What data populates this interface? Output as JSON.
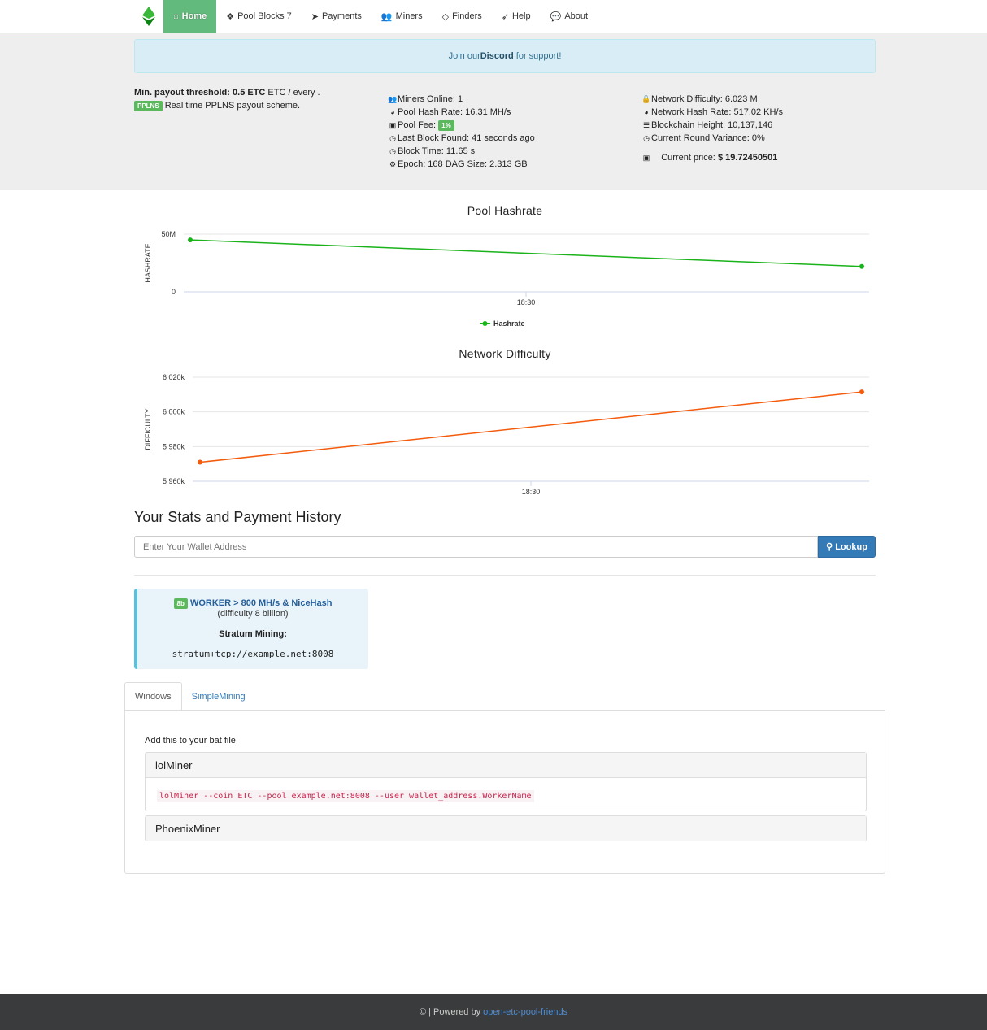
{
  "nav": {
    "items": [
      {
        "label": "Home",
        "icon": "home-icon"
      },
      {
        "label": "Pool Blocks 7",
        "icon": "cubes-icon"
      },
      {
        "label": "Payments",
        "icon": "paper-plane-icon"
      },
      {
        "label": "Miners",
        "icon": "users-icon"
      },
      {
        "label": "Finders",
        "icon": "diamond-icon"
      },
      {
        "label": "Help",
        "icon": "rocket-icon"
      },
      {
        "label": "About",
        "icon": "comments-icon"
      }
    ]
  },
  "alert": {
    "pre": "Join our ",
    "link": "Discord",
    "post": " for support!"
  },
  "payout": {
    "label": "Min. payout threshold:",
    "value": "0.5 ETC",
    "rest": " ETC / every .",
    "badge": "PPLNS",
    "scheme": "Real time PPLNS payout scheme."
  },
  "stats": {
    "miners_online": "Miners Online: 1",
    "pool_hash_rate": "Pool Hash Rate: 16.31 MH/s",
    "pool_fee_label": "Pool Fee:",
    "pool_fee": "1%",
    "last_block": "Last Block Found: 41 seconds ago",
    "block_time": "Block Time: 11.65 s",
    "epoch": "Epoch: 168 DAG Size: 2.313 GB"
  },
  "network": {
    "difficulty": "Network Difficulty: 6.023 M",
    "hash_rate": "Network Hash Rate: 517.02 KH/s",
    "height": "Blockchain Height: 10,137,146",
    "variance": "Current Round Variance: 0%",
    "price_label": "Current price:",
    "price": "$ 19.72450501"
  },
  "chart_data": [
    {
      "type": "line",
      "title": "Pool Hashrate",
      "ylabel": "HASHRATE",
      "yticks": [
        "0",
        "50M"
      ],
      "ylim": [
        0,
        50000000
      ],
      "xticks": [
        "18:30"
      ],
      "legend": "Hashrate",
      "legend_position": "bottom",
      "color": "#1ab31a",
      "values": [
        45000000,
        22000000
      ],
      "grid": true
    },
    {
      "type": "line",
      "title": "Network Difficulty",
      "ylabel": "DIFFICULTY",
      "yticks": [
        "5 960k",
        "5 980k",
        "6 000k",
        "6 020k"
      ],
      "ylim": [
        5960000,
        6020000
      ],
      "xticks": [
        "18:30"
      ],
      "color": "#f45b0c",
      "values": [
        5971000,
        6011500
      ],
      "grid": true
    }
  ],
  "stats_section": {
    "title": "Your Stats and Payment History",
    "placeholder": "Enter Your Wallet Address",
    "lookup": "Lookup"
  },
  "worker": {
    "badge": "8b",
    "title": "WORKER > 800 MH/s & NiceHash",
    "difficulty": "(difficulty 8 billion)",
    "stratum_label": "Stratum Mining:",
    "stratum": "stratum+tcp://example.net:8008"
  },
  "tabs": [
    {
      "label": "Windows"
    },
    {
      "label": "SimpleMining"
    }
  ],
  "windows": {
    "intro": "Add this to your bat file",
    "panels": [
      {
        "title": "lolMiner",
        "code": "lolMiner --coin ETC --pool example.net:8008 --user wallet_address.WorkerName"
      },
      {
        "title": "PhoenixMiner"
      }
    ]
  },
  "footer": {
    "pre": "© | Powered by",
    "link": "open-etc-pool-friends"
  }
}
